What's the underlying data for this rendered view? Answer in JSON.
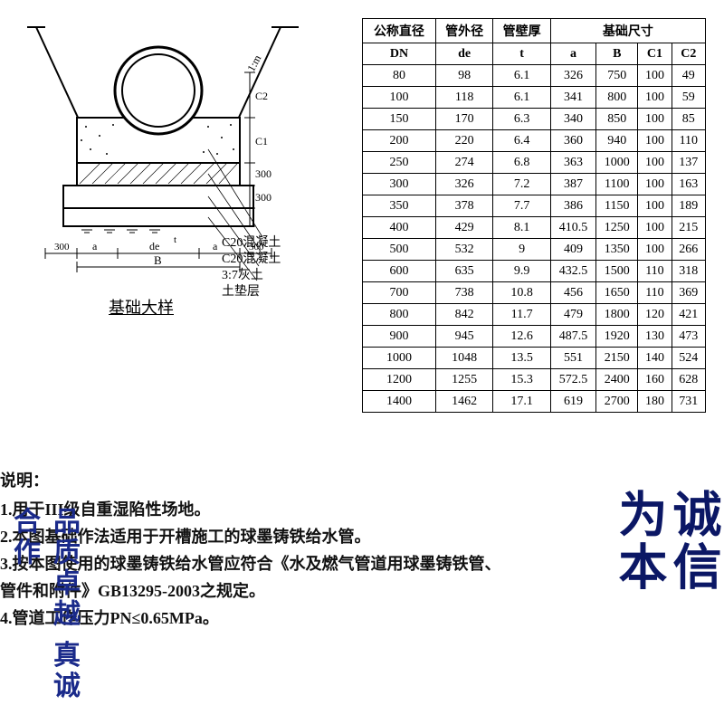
{
  "diagram": {
    "title": "基础大样",
    "slope_label": "1:m",
    "dims": {
      "c2": "C2",
      "c1": "C1",
      "h1": "300",
      "h2": "300",
      "a": "a",
      "de": "de",
      "t": "t",
      "B": "B",
      "edge": "300"
    },
    "legend": [
      "C20混凝土",
      "C20混凝土",
      "3:7灰土",
      "土垫层"
    ],
    "colors": {
      "stroke": "#000000",
      "hatch": "#000000",
      "bg": "#ffffff",
      "pipe_fill": "#ffffff"
    }
  },
  "notes": {
    "header": "说明：",
    "items": [
      "1.用于III级自重湿陷性场地。",
      "2.本图基础作法适用于开槽施工的球墨铸铁给水管。",
      "3.按本图使用的球墨铸铁给水管应符合《水及燃气管道用球墨铸铁管、",
      "管件和附件》GB13295-2003之规定。",
      "4.管道工作压力PN≤0.65MPa。"
    ]
  },
  "table": {
    "group_headers": [
      "公称直径",
      "管外径",
      "管壁厚",
      "基础尺寸"
    ],
    "sub_headers": [
      "DN",
      "de",
      "t",
      "a",
      "B",
      "C1",
      "C2"
    ],
    "rows": [
      [
        "80",
        "98",
        "6.1",
        "326",
        "750",
        "100",
        "49"
      ],
      [
        "100",
        "118",
        "6.1",
        "341",
        "800",
        "100",
        "59"
      ],
      [
        "150",
        "170",
        "6.3",
        "340",
        "850",
        "100",
        "85"
      ],
      [
        "200",
        "220",
        "6.4",
        "360",
        "940",
        "100",
        "110"
      ],
      [
        "250",
        "274",
        "6.8",
        "363",
        "1000",
        "100",
        "137"
      ],
      [
        "300",
        "326",
        "7.2",
        "387",
        "1100",
        "100",
        "163"
      ],
      [
        "350",
        "378",
        "7.7",
        "386",
        "1150",
        "100",
        "189"
      ],
      [
        "400",
        "429",
        "8.1",
        "410.5",
        "1250",
        "100",
        "215"
      ],
      [
        "500",
        "532",
        "9",
        "409",
        "1350",
        "100",
        "266"
      ],
      [
        "600",
        "635",
        "9.9",
        "432.5",
        "1500",
        "110",
        "318"
      ],
      [
        "700",
        "738",
        "10.8",
        "456",
        "1650",
        "110",
        "369"
      ],
      [
        "800",
        "842",
        "11.7",
        "479",
        "1800",
        "120",
        "421"
      ],
      [
        "900",
        "945",
        "12.6",
        "487.5",
        "1920",
        "130",
        "473"
      ],
      [
        "1000",
        "1048",
        "13.5",
        "551",
        "2150",
        "140",
        "524"
      ],
      [
        "1200",
        "1255",
        "15.3",
        "572.5",
        "2400",
        "160",
        "628"
      ],
      [
        "1400",
        "1462",
        "17.1",
        "619",
        "2700",
        "180",
        "731"
      ]
    ]
  },
  "watermark": {
    "left": "品质卓越\n真诚合作",
    "right_col1": "诚信",
    "right_col2": "为本"
  }
}
